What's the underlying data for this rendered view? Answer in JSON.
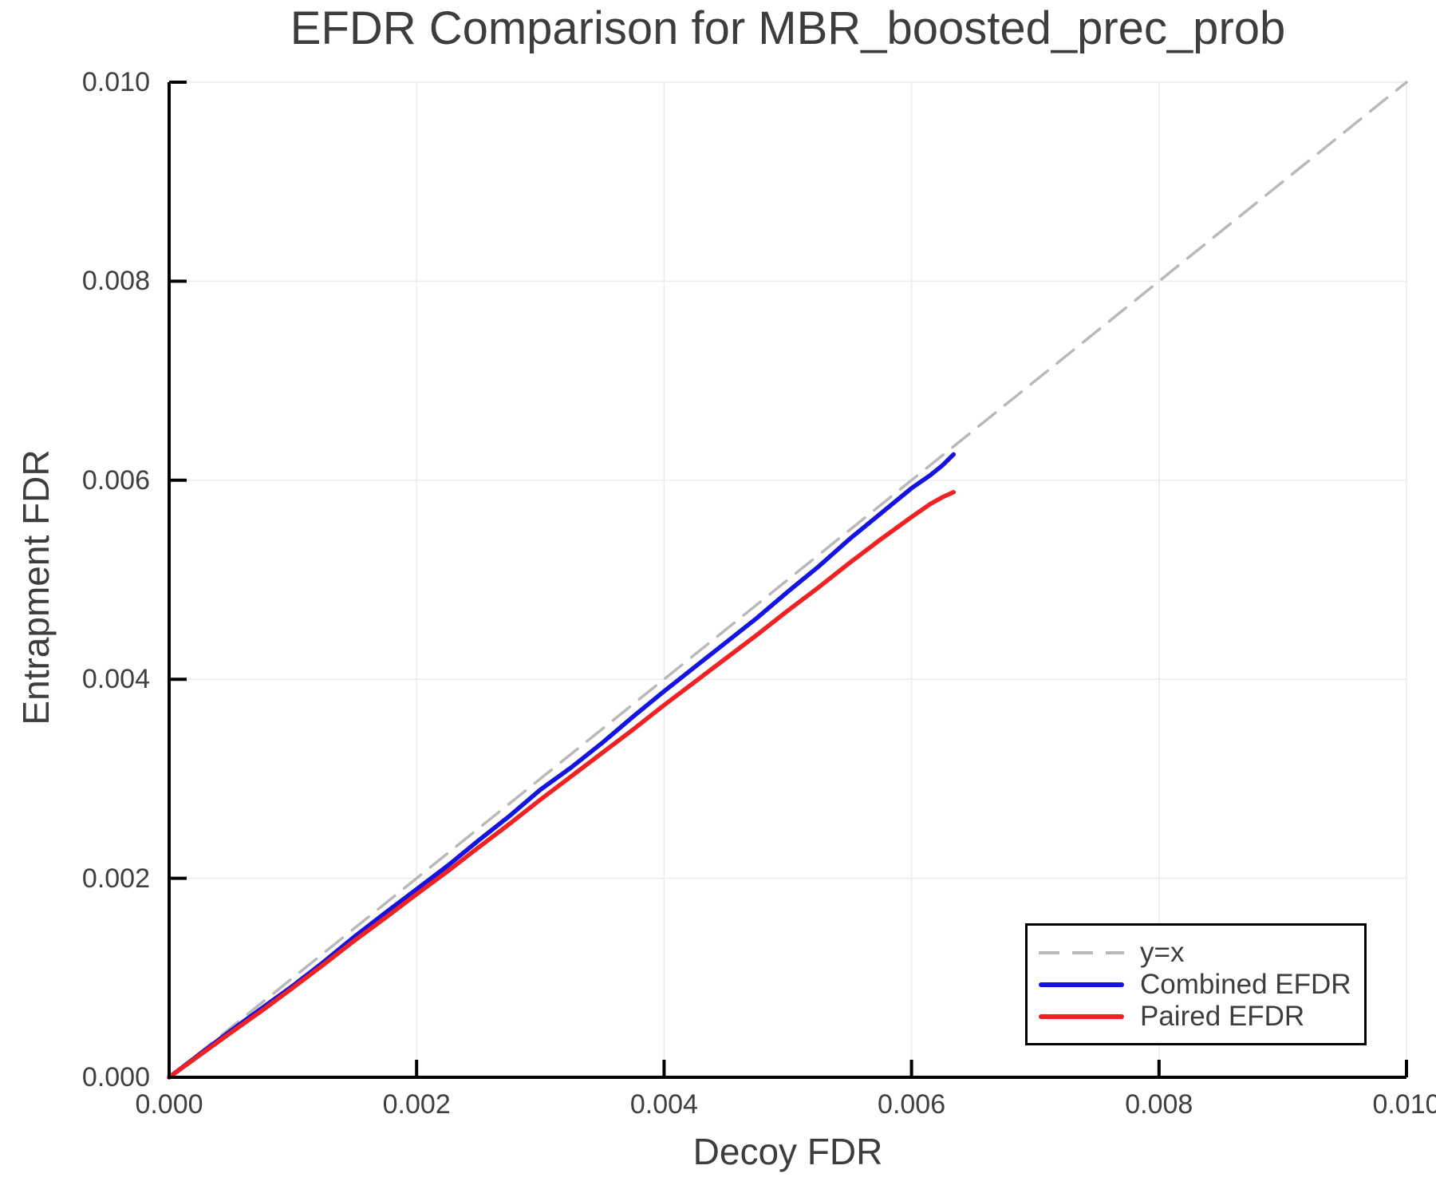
{
  "title": "EFDR Comparison for MBR_boosted_prec_prob",
  "x_axis": {
    "label": "Decoy FDR",
    "tick_labels": [
      "0.000",
      "0.002",
      "0.004",
      "0.006",
      "0.008",
      "0.010"
    ]
  },
  "y_axis": {
    "label": "Entrapment FDR",
    "tick_labels": [
      "0.000",
      "0.002",
      "0.004",
      "0.006",
      "0.008",
      "0.010"
    ]
  },
  "legend": {
    "entries": [
      {
        "label": "y=x",
        "color": "#b9b9b9",
        "style": "dashed"
      },
      {
        "label": "Combined EFDR",
        "color": "#1414e0",
        "style": "solid"
      },
      {
        "label": "Paired EFDR",
        "color": "#ee2222",
        "style": "solid"
      }
    ]
  },
  "colors": {
    "grid": "#ececec",
    "spine": "#000000",
    "identity_line": "#b9b9b9",
    "combined": "#1414e0",
    "paired": "#ee2222",
    "text": "#3d3d3d",
    "tick_text": "#3f3f3f"
  },
  "chart_data": {
    "type": "line",
    "title": "EFDR Comparison for MBR_boosted_prec_prob",
    "xlabel": "Decoy FDR",
    "ylabel": "Entrapment FDR",
    "xlim": [
      0,
      0.01
    ],
    "ylim": [
      0,
      0.01
    ],
    "x_ticks": [
      0,
      0.002,
      0.004,
      0.006,
      0.008,
      0.01
    ],
    "y_ticks": [
      0,
      0.002,
      0.004,
      0.006,
      0.008,
      0.01
    ],
    "grid": true,
    "legend_position": "lower right",
    "series": [
      {
        "name": "y=x",
        "color": "#b9b9b9",
        "style": "dashed",
        "x": [
          0,
          0.01
        ],
        "y": [
          0,
          0.01
        ]
      },
      {
        "name": "Combined EFDR",
        "color": "#1414e0",
        "style": "solid",
        "x": [
          0,
          0.00025,
          0.0005,
          0.00075,
          0.001,
          0.00125,
          0.0015,
          0.00175,
          0.002,
          0.00225,
          0.0025,
          0.00275,
          0.003,
          0.00325,
          0.0035,
          0.00375,
          0.004,
          0.00425,
          0.0045,
          0.00475,
          0.005,
          0.00525,
          0.0055,
          0.00575,
          0.006,
          0.00615,
          0.00625,
          0.00634
        ],
        "y": [
          0,
          0.000235,
          0.00047,
          0.000695,
          0.00092,
          0.00116,
          0.001415,
          0.001655,
          0.00189,
          0.002125,
          0.00238,
          0.002625,
          0.00289,
          0.003115,
          0.00336,
          0.003625,
          0.00388,
          0.004125,
          0.00437,
          0.004615,
          0.00488,
          0.005135,
          0.00541,
          0.005665,
          0.00592,
          0.00605,
          0.00615,
          0.00626
        ]
      },
      {
        "name": "Paired EFDR",
        "color": "#ee2222",
        "style": "solid",
        "x": [
          0,
          0.00025,
          0.0005,
          0.00075,
          0.001,
          0.00125,
          0.0015,
          0.00175,
          0.002,
          0.00225,
          0.0025,
          0.00275,
          0.003,
          0.00325,
          0.0035,
          0.00375,
          0.004,
          0.00425,
          0.0045,
          0.00475,
          0.005,
          0.00525,
          0.0055,
          0.00575,
          0.006,
          0.00615,
          0.00625,
          0.00634
        ],
        "y": [
          0,
          0.000225,
          0.00045,
          0.00067,
          0.0009,
          0.001135,
          0.001375,
          0.001605,
          0.00184,
          0.00207,
          0.00231,
          0.002545,
          0.00279,
          0.003025,
          0.00326,
          0.003495,
          0.00374,
          0.003975,
          0.00421,
          0.004445,
          0.00469,
          0.004925,
          0.00517,
          0.005405,
          0.00563,
          0.00576,
          0.00583,
          0.00588
        ]
      }
    ]
  }
}
